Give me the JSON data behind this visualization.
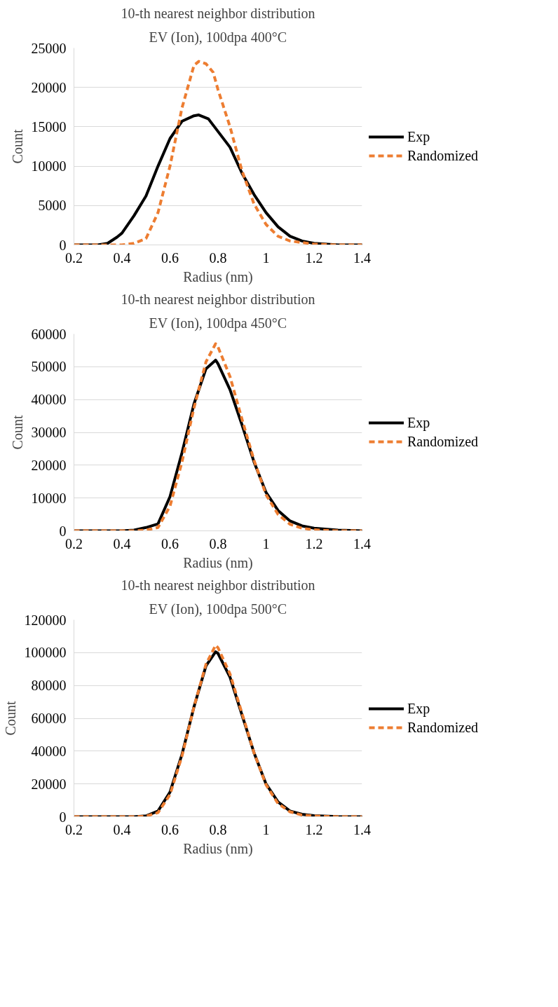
{
  "chart_data": [
    {
      "type": "line",
      "title": "10-th nearest neighbor distribution",
      "subtitle": "EV (Ion), 100dpa 400°C",
      "xlabel": "Radius (nm)",
      "ylabel": "Count",
      "xlim": [
        0.2,
        1.4
      ],
      "xticks": [
        0.2,
        0.4,
        0.6,
        0.8,
        1,
        1.2,
        1.4
      ],
      "ylim": [
        0,
        25000
      ],
      "yticks": [
        0,
        5000,
        10000,
        15000,
        20000,
        25000
      ],
      "grid": "y",
      "legend": "right",
      "series": [
        {
          "name": "Exp",
          "color": "#000000",
          "line_style": "solid",
          "x": [
            0.2,
            0.3,
            0.34,
            0.38,
            0.4,
            0.45,
            0.5,
            0.55,
            0.6,
            0.65,
            0.7,
            0.72,
            0.76,
            0.8,
            0.85,
            0.9,
            0.95,
            1.0,
            1.05,
            1.1,
            1.15,
            1.2,
            1.3,
            1.4
          ],
          "values": [
            0,
            0,
            200,
            1000,
            1500,
            3700,
            6200,
            10000,
            13500,
            15700,
            16400,
            16500,
            16000,
            14400,
            12400,
            9100,
            6400,
            4100,
            2300,
            1100,
            500,
            200,
            0,
            0
          ]
        },
        {
          "name": "Randomized",
          "color": "#ed7d31",
          "line_style": "dashed",
          "x": [
            0.2,
            0.3,
            0.4,
            0.45,
            0.5,
            0.55,
            0.6,
            0.65,
            0.7,
            0.72,
            0.75,
            0.78,
            0.8,
            0.85,
            0.9,
            0.95,
            1.0,
            1.05,
            1.1,
            1.2,
            1.3,
            1.4
          ],
          "values": [
            0,
            0,
            0,
            200,
            800,
            4100,
            10000,
            17400,
            22800,
            23300,
            23000,
            21900,
            19700,
            15000,
            9400,
            5200,
            2600,
            1100,
            500,
            100,
            0,
            0
          ]
        }
      ]
    },
    {
      "type": "line",
      "title": "10-th nearest neighbor distribution",
      "subtitle": "EV (Ion), 100dpa 450°C",
      "xlabel": "Radius (nm)",
      "ylabel": "Count",
      "xlim": [
        0.2,
        1.4
      ],
      "xticks": [
        0.2,
        0.4,
        0.6,
        0.8,
        1,
        1.2,
        1.4
      ],
      "ylim": [
        0,
        60000
      ],
      "yticks": [
        0,
        10000,
        20000,
        30000,
        40000,
        50000,
        60000
      ],
      "grid": "y",
      "legend": "right",
      "series": [
        {
          "name": "Exp",
          "color": "#000000",
          "line_style": "solid",
          "x": [
            0.2,
            0.4,
            0.45,
            0.5,
            0.55,
            0.6,
            0.65,
            0.7,
            0.75,
            0.79,
            0.8,
            0.85,
            0.9,
            0.95,
            1.0,
            1.05,
            1.1,
            1.15,
            1.2,
            1.3,
            1.4
          ],
          "values": [
            0,
            0,
            200,
            1000,
            2100,
            10400,
            23800,
            38700,
            49400,
            52000,
            50900,
            43000,
            32300,
            21000,
            11700,
            6200,
            3000,
            1500,
            800,
            200,
            0
          ]
        },
        {
          "name": "Randomized",
          "color": "#ed7d31",
          "line_style": "dashed",
          "x": [
            0.2,
            0.45,
            0.5,
            0.55,
            0.6,
            0.65,
            0.7,
            0.75,
            0.79,
            0.8,
            0.85,
            0.9,
            0.95,
            1.0,
            1.05,
            1.1,
            1.15,
            1.2,
            1.3,
            1.4
          ],
          "values": [
            0,
            0,
            200,
            1000,
            7500,
            21000,
            37500,
            51500,
            57000,
            56000,
            47000,
            34000,
            21500,
            11000,
            5000,
            2000,
            800,
            300,
            0,
            0
          ]
        }
      ]
    },
    {
      "type": "line",
      "title": "10-th nearest neighbor distribution",
      "subtitle": "EV (Ion), 100dpa 500°C",
      "xlabel": "Radius (nm)",
      "ylabel": "Count",
      "xlim": [
        0.2,
        1.4
      ],
      "xticks": [
        0.2,
        0.4,
        0.6,
        0.8,
        1,
        1.2,
        1.4
      ],
      "ylim": [
        0,
        120000
      ],
      "yticks": [
        0,
        20000,
        40000,
        60000,
        80000,
        100000,
        120000
      ],
      "grid": "y",
      "legend": "right",
      "series": [
        {
          "name": "Exp",
          "color": "#000000",
          "line_style": "solid",
          "x": [
            0.2,
            0.45,
            0.5,
            0.55,
            0.6,
            0.65,
            0.7,
            0.75,
            0.79,
            0.8,
            0.85,
            0.9,
            0.95,
            1.0,
            1.05,
            1.1,
            1.15,
            1.2,
            1.3,
            1.4
          ],
          "values": [
            0,
            0,
            500,
            3500,
            15000,
            38000,
            67000,
            92000,
            100500,
            99500,
            85000,
            62000,
            39000,
            20000,
            9000,
            3500,
            1500,
            600,
            100,
            0
          ]
        },
        {
          "name": "Randomized",
          "color": "#ed7d31",
          "line_style": "dashed",
          "x": [
            0.2,
            0.45,
            0.5,
            0.55,
            0.6,
            0.65,
            0.7,
            0.75,
            0.79,
            0.8,
            0.85,
            0.9,
            0.95,
            1.0,
            1.05,
            1.1,
            1.15,
            1.2,
            1.3,
            1.4
          ],
          "values": [
            0,
            0,
            300,
            2500,
            13500,
            37000,
            67000,
            93000,
            104500,
            103000,
            87000,
            63000,
            39000,
            19500,
            8000,
            3000,
            1000,
            400,
            0,
            0
          ]
        }
      ]
    }
  ]
}
